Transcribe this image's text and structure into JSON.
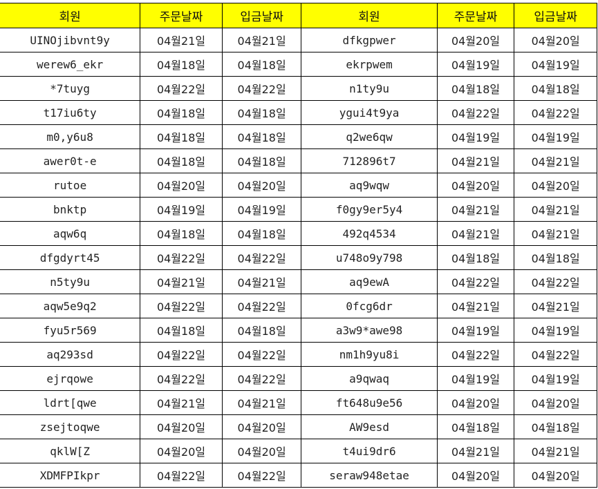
{
  "header_color": "#ffff00",
  "headers": [
    "회원",
    "주문날짜",
    "입금날짜",
    "회원",
    "주문날짜",
    "입금날짜"
  ],
  "rows": [
    [
      "UINOjibvnt9y",
      "04월21일",
      "04월21일",
      "dfkgpwer",
      "04월20일",
      "04월20일"
    ],
    [
      "werew6_ekr",
      "04월18일",
      "04월18일",
      "ekrpwem",
      "04월19일",
      "04월19일"
    ],
    [
      "*7tuyg",
      "04월22일",
      "04월22일",
      "n1ty9u",
      "04월18일",
      "04월18일"
    ],
    [
      "t17iu6ty",
      "04월18일",
      "04월18일",
      "ygui4t9ya",
      "04월22일",
      "04월22일"
    ],
    [
      "m0,y6u8",
      "04월18일",
      "04월18일",
      "q2we6qw",
      "04월19일",
      "04월19일"
    ],
    [
      "awer0t-e",
      "04월18일",
      "04월18일",
      "712896t7",
      "04월21일",
      "04월21일"
    ],
    [
      "rutoe",
      "04월20일",
      "04월20일",
      "aq9wqw",
      "04월20일",
      "04월20일"
    ],
    [
      "bnktp",
      "04월19일",
      "04월19일",
      "f0gy9er5y4",
      "04월21일",
      "04월21일"
    ],
    [
      "aqw6q",
      "04월18일",
      "04월18일",
      "492q4534",
      "04월21일",
      "04월21일"
    ],
    [
      "dfgdyrt45",
      "04월22일",
      "04월22일",
      "u748o9y798",
      "04월18일",
      "04월18일"
    ],
    [
      "n5ty9u",
      "04월21일",
      "04월21일",
      "aq9ewA",
      "04월22일",
      "04월22일"
    ],
    [
      "aqw5e9q2",
      "04월22일",
      "04월22일",
      "0fcg6dr",
      "04월21일",
      "04월21일"
    ],
    [
      "fyu5r569",
      "04월18일",
      "04월18일",
      "a3w9*awe98",
      "04월19일",
      "04월19일"
    ],
    [
      "aq293sd",
      "04월22일",
      "04월22일",
      "nm1h9yu8i",
      "04월22일",
      "04월22일"
    ],
    [
      "ejrqowe",
      "04월22일",
      "04월22일",
      "a9qwaq",
      "04월19일",
      "04월19일"
    ],
    [
      "ldrt[qwe",
      "04월21일",
      "04월21일",
      "ft648u9e56",
      "04월20일",
      "04월20일"
    ],
    [
      "zsejtoqwe",
      "04월20일",
      "04월20일",
      "AW9esd",
      "04월18일",
      "04월18일"
    ],
    [
      "qklW[Z",
      "04월20일",
      "04월20일",
      "t4ui9dr6",
      "04월21일",
      "04월21일"
    ],
    [
      "XDMFPIkpr",
      "04월22일",
      "04월22일",
      "seraw948etae",
      "04월20일",
      "04월20일"
    ]
  ]
}
